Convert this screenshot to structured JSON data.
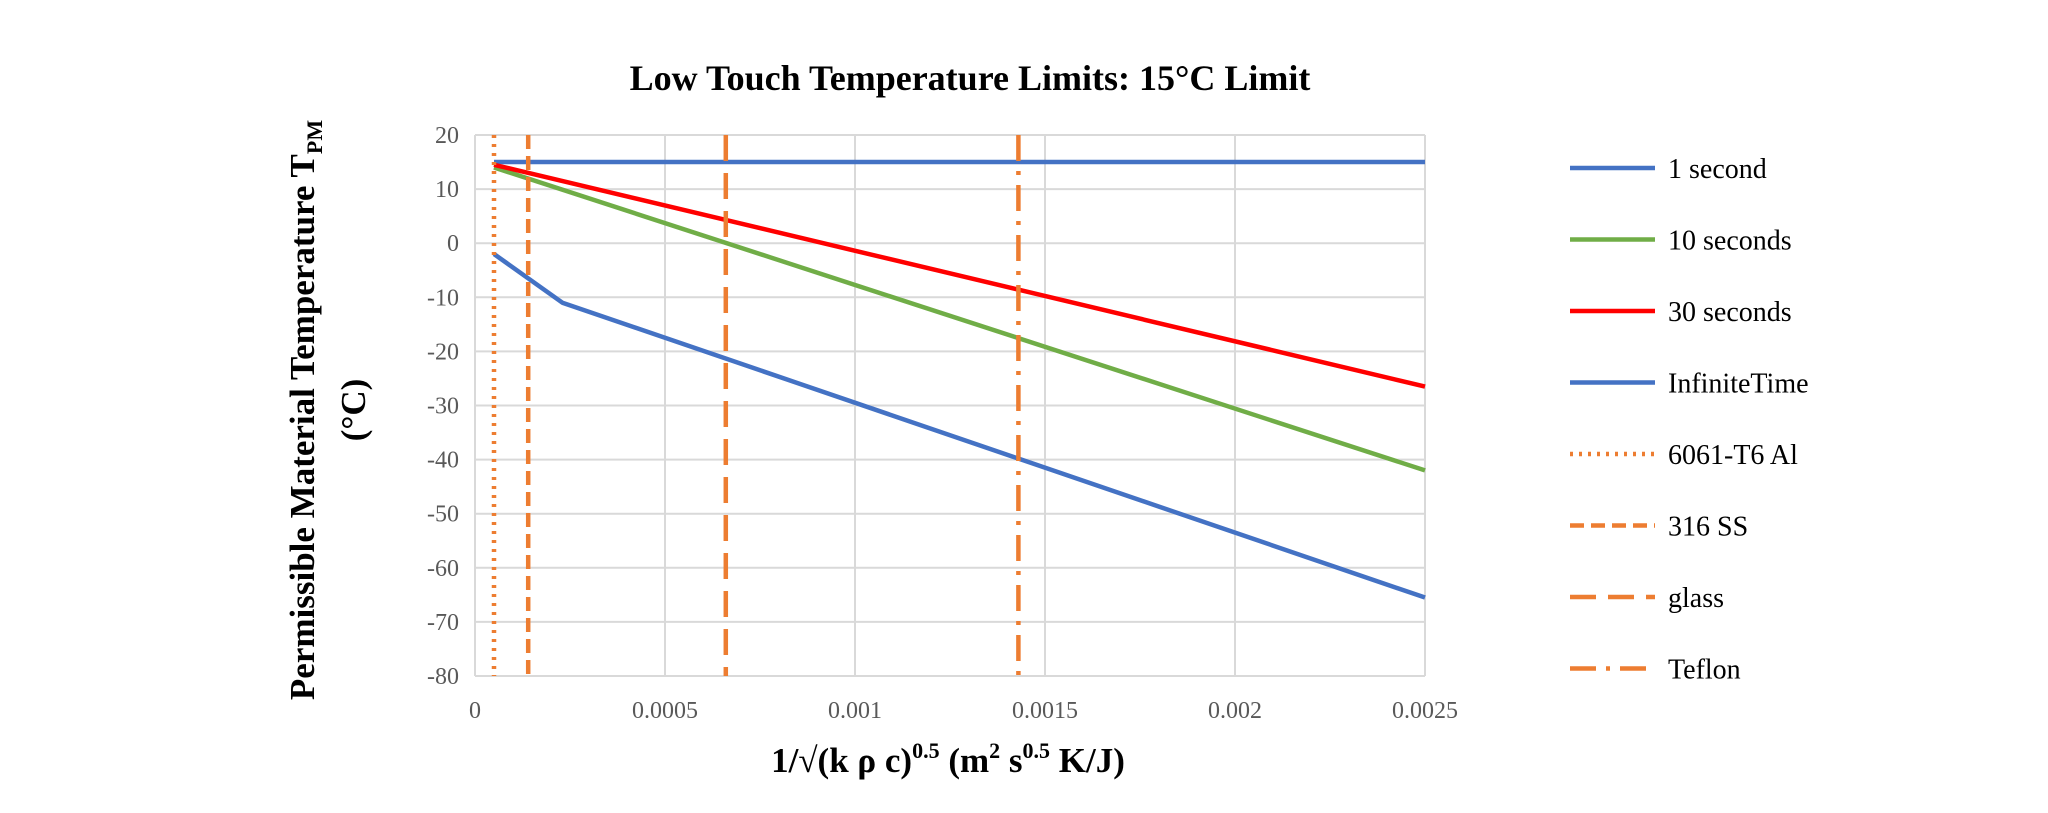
{
  "chart_data": {
    "type": "line",
    "title": "Low Touch Temperature Limits: 15°C Limit",
    "xlabel": {
      "base": "1/√(k ρ c)",
      "exp1": "0.5",
      "mid1": " (m",
      "exp2": "2",
      "mid2": " s",
      "exp3": "0.5",
      "end": " K/J)"
    },
    "ylabel": {
      "line1_base": "Permissible Material Temperature T",
      "line1_sub": "PM",
      "line2": "(°C)"
    },
    "xlim": [
      0,
      0.0025
    ],
    "ylim": [
      -80,
      20
    ],
    "x_ticks": [
      0,
      0.0005,
      0.001,
      0.0015,
      0.002,
      0.0025
    ],
    "x_tick_labels": [
      "0",
      "0.0005",
      "0.001",
      "0.0015",
      "0.002",
      "0.0025"
    ],
    "y_ticks": [
      20,
      10,
      0,
      -10,
      -20,
      -30,
      -40,
      -50,
      -60,
      -70,
      -80
    ],
    "y_tick_labels": [
      "20",
      "10",
      "0",
      "-10",
      "-20",
      "-30",
      "-40",
      "-50",
      "-60",
      "-70",
      "-80"
    ],
    "grid": true,
    "legend_position": "right",
    "series": [
      {
        "name": "1 second",
        "color": "#4472c4",
        "style": "solid",
        "x": [
          5e-05,
          0.0025
        ],
        "y": [
          15,
          15
        ]
      },
      {
        "name": "10 seconds",
        "color": "#70ad47",
        "style": "solid",
        "x": [
          5e-05,
          0.0025
        ],
        "y": [
          14,
          -42
        ]
      },
      {
        "name": "30 seconds",
        "color": "#ff0000",
        "style": "solid",
        "x": [
          5e-05,
          0.0025
        ],
        "y": [
          14.5,
          -26.5
        ]
      },
      {
        "name": "InfiniteTime",
        "color": "#4472c4",
        "style": "solid",
        "x": [
          5e-05,
          0.00023,
          0.0025
        ],
        "y": [
          -2,
          -11,
          -65.5
        ]
      },
      {
        "name": "6061-T6 Al",
        "color": "#ed7d31",
        "style": "dotted",
        "type": "vertical",
        "x_value": 5e-05
      },
      {
        "name": "316 SS",
        "color": "#ed7d31",
        "style": "dashed",
        "type": "vertical",
        "x_value": 0.00014
      },
      {
        "name": "glass",
        "color": "#ed7d31",
        "style": "long-dashed",
        "type": "vertical",
        "x_value": 0.00066
      },
      {
        "name": "Teflon",
        "color": "#ed7d31",
        "style": "dash-dot",
        "type": "vertical",
        "x_value": 0.00143
      }
    ]
  }
}
